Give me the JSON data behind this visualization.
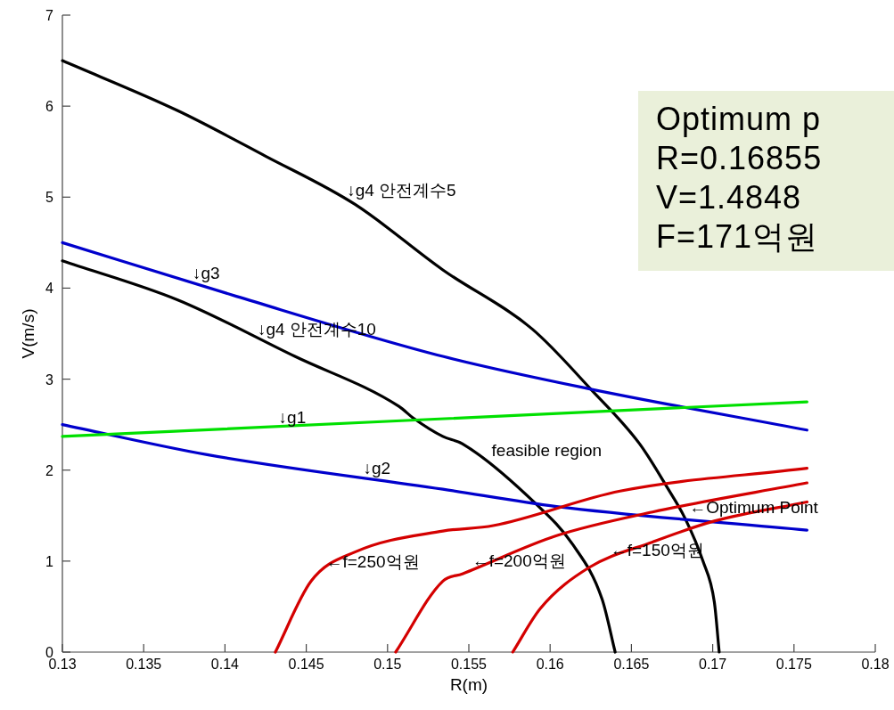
{
  "chart_data": {
    "type": "line",
    "xlabel": "R(m)",
    "ylabel": "V(m/s)",
    "xlim": [
      0.13,
      0.18
    ],
    "xticks": [
      0.13,
      0.135,
      0.14,
      0.145,
      0.15,
      0.155,
      0.16,
      0.165,
      0.17,
      0.175,
      0.18
    ],
    "ylim": [
      0,
      7
    ],
    "yticks": [
      0,
      1,
      2,
      3,
      4,
      5,
      6,
      7
    ],
    "grid": false,
    "series": [
      {
        "color": "#000000",
        "x": [
          0.13,
          0.1371,
          0.1425,
          0.148,
          0.1534,
          0.1589,
          0.1625,
          0.1655,
          0.1672,
          0.1683,
          0.1694,
          0.1701,
          0.1704
        ],
        "values": [
          6.5,
          5.95,
          5.45,
          4.92,
          4.2,
          3.55,
          2.89,
          2.29,
          1.81,
          1.47,
          1.0,
          0.55,
          0
        ]
      },
      {
        "color": "#000000",
        "x": [
          0.13,
          0.1371,
          0.1443,
          0.1507,
          0.1516,
          0.1534,
          0.1546,
          0.159,
          0.1614,
          0.1632,
          0.164
        ],
        "values": [
          4.3,
          3.87,
          3.25,
          2.7,
          2.57,
          2.37,
          2.29,
          1.65,
          1.18,
          0.58,
          0
        ]
      },
      {
        "color": "#0000cc",
        "x": [
          0.13,
          0.1407,
          0.1534,
          0.1625,
          0.1758
        ],
        "values": [
          4.5,
          3.91,
          3.25,
          2.89,
          2.44
        ]
      },
      {
        "color": "#0000cc",
        "x": [
          0.13,
          0.1389,
          0.1534,
          0.1604,
          0.1758
        ],
        "values": [
          2.5,
          2.17,
          1.79,
          1.6,
          1.34
        ]
      },
      {
        "color": "#00e000",
        "x": [
          0.13,
          0.1758
        ],
        "values": [
          2.37,
          2.75
        ]
      },
      {
        "color": "#d40000",
        "x": [
          0.1577,
          0.1594,
          0.1624,
          0.1663,
          0.1701,
          0.1758
        ],
        "values": [
          0,
          0.48,
          0.93,
          1.21,
          1.44,
          1.65
        ]
      },
      {
        "color": "#d40000",
        "x": [
          0.1505,
          0.1534,
          0.1546,
          0.1604,
          0.1663,
          0.1758
        ],
        "values": [
          0,
          0.78,
          0.86,
          1.28,
          1.54,
          1.86
        ]
      },
      {
        "color": "#d40000",
        "x": [
          0.1431,
          0.1453,
          0.148,
          0.1534,
          0.1565,
          0.1643,
          0.1758
        ],
        "values": [
          0,
          0.78,
          1.1,
          1.33,
          1.39,
          1.77,
          2.02
        ]
      }
    ],
    "annotations": [
      {
        "text": "↓g4 안전계수5",
        "x": 0.1475,
        "y": 4.97
      },
      {
        "text": "↓g3",
        "x": 0.138,
        "y": 4.06
      },
      {
        "text": "↓g4 안전계수10",
        "x": 0.142,
        "y": 3.45
      },
      {
        "text": "↓g1",
        "x": 0.1433,
        "y": 2.48
      },
      {
        "text": "↓g2",
        "x": 0.1485,
        "y": 1.92
      },
      {
        "text": "feasible region",
        "x": 0.1564,
        "y": 2.11
      },
      {
        "text": "←Optimum Point",
        "x": 0.16855,
        "y": 1.4848
      },
      {
        "text": "←f=250억원",
        "x": 0.1462,
        "y": 0.89
      },
      {
        "text": "←f=200억원",
        "x": 0.1552,
        "y": 0.9
      },
      {
        "text": "←f=150억원",
        "x": 0.1637,
        "y": 1.02
      },
      "Optimum p",
      "R=0.16855",
      "V=1.4848",
      "F=171억원"
    ]
  }
}
